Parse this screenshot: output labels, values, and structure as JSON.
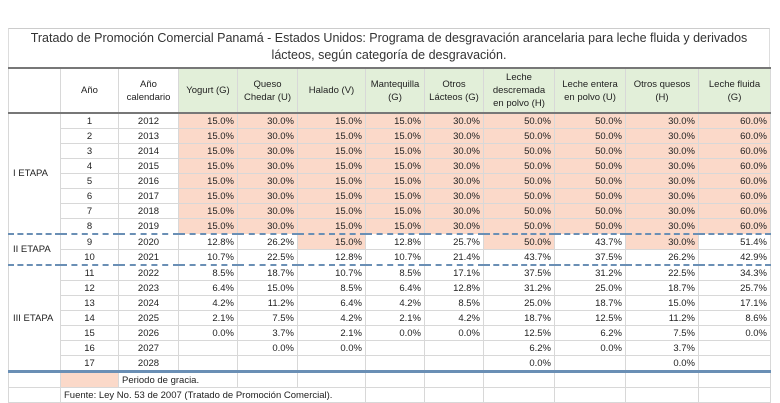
{
  "title": "Tratado de Promoción Comercial Panamá - Estados Unidos: Programa de desgravación arancelaria para leche fluida y derivados lácteos, según categoría de desgravación.",
  "colors": {
    "grace_period": "#fbd9c9",
    "header_green": "#e2efd9",
    "divider_blue": "#6a8fb5"
  },
  "headers": [
    "",
    "Año",
    "Año calendario",
    "Yogurt (G)",
    "Queso Chedar (U)",
    "Halado (V)",
    "Mantequilla (G)",
    "Otros Lácteos (G)",
    "Leche descremada en polvo (H)",
    "Leche entera en polvo (U)",
    "Otros quesos (H)",
    "Leche fluida (G)"
  ],
  "stages": [
    "I ETAPA",
    "II ETAPA",
    "III ETAPA"
  ],
  "rows": [
    {
      "year": "1",
      "cal": "2012",
      "v": [
        "15.0%",
        "30.0%",
        "15.0%",
        "15.0%",
        "30.0%",
        "50.0%",
        "50.0%",
        "30.0%",
        "60.0%"
      ],
      "grace": [
        1,
        1,
        1,
        1,
        1,
        1,
        1,
        1,
        1
      ]
    },
    {
      "year": "2",
      "cal": "2013",
      "v": [
        "15.0%",
        "30.0%",
        "15.0%",
        "15.0%",
        "30.0%",
        "50.0%",
        "50.0%",
        "30.0%",
        "60.0%"
      ],
      "grace": [
        1,
        1,
        1,
        1,
        1,
        1,
        1,
        1,
        1
      ]
    },
    {
      "year": "3",
      "cal": "2014",
      "v": [
        "15.0%",
        "30.0%",
        "15.0%",
        "15.0%",
        "30.0%",
        "50.0%",
        "50.0%",
        "30.0%",
        "60.0%"
      ],
      "grace": [
        1,
        1,
        1,
        1,
        1,
        1,
        1,
        1,
        1
      ]
    },
    {
      "year": "4",
      "cal": "2015",
      "v": [
        "15.0%",
        "30.0%",
        "15.0%",
        "15.0%",
        "30.0%",
        "50.0%",
        "50.0%",
        "30.0%",
        "60.0%"
      ],
      "grace": [
        1,
        1,
        1,
        1,
        1,
        1,
        1,
        1,
        1
      ]
    },
    {
      "year": "5",
      "cal": "2016",
      "v": [
        "15.0%",
        "30.0%",
        "15.0%",
        "15.0%",
        "30.0%",
        "50.0%",
        "50.0%",
        "30.0%",
        "60.0%"
      ],
      "grace": [
        1,
        1,
        1,
        1,
        1,
        1,
        1,
        1,
        1
      ]
    },
    {
      "year": "6",
      "cal": "2017",
      "v": [
        "15.0%",
        "30.0%",
        "15.0%",
        "15.0%",
        "30.0%",
        "50.0%",
        "50.0%",
        "30.0%",
        "60.0%"
      ],
      "grace": [
        1,
        1,
        1,
        1,
        1,
        1,
        1,
        1,
        1
      ]
    },
    {
      "year": "7",
      "cal": "2018",
      "v": [
        "15.0%",
        "30.0%",
        "15.0%",
        "15.0%",
        "30.0%",
        "50.0%",
        "50.0%",
        "30.0%",
        "60.0%"
      ],
      "grace": [
        1,
        1,
        1,
        1,
        1,
        1,
        1,
        1,
        1
      ]
    },
    {
      "year": "8",
      "cal": "2019",
      "v": [
        "15.0%",
        "30.0%",
        "15.0%",
        "15.0%",
        "30.0%",
        "50.0%",
        "50.0%",
        "30.0%",
        "60.0%"
      ],
      "grace": [
        1,
        1,
        1,
        1,
        1,
        1,
        1,
        1,
        1
      ]
    },
    {
      "year": "9",
      "cal": "2020",
      "v": [
        "12.8%",
        "26.2%",
        "15.0%",
        "12.8%",
        "25.7%",
        "50.0%",
        "43.7%",
        "30.0%",
        "51.4%"
      ],
      "grace": [
        0,
        0,
        1,
        0,
        0,
        1,
        0,
        1,
        0
      ]
    },
    {
      "year": "10",
      "cal": "2021",
      "v": [
        "10.7%",
        "22.5%",
        "12.8%",
        "10.7%",
        "21.4%",
        "43.7%",
        "37.5%",
        "26.2%",
        "42.9%"
      ],
      "grace": [
        0,
        0,
        0,
        0,
        0,
        0,
        0,
        0,
        0
      ]
    },
    {
      "year": "11",
      "cal": "2022",
      "v": [
        "8.5%",
        "18.7%",
        "10.7%",
        "8.5%",
        "17.1%",
        "37.5%",
        "31.2%",
        "22.5%",
        "34.3%"
      ],
      "grace": [
        0,
        0,
        0,
        0,
        0,
        0,
        0,
        0,
        0
      ]
    },
    {
      "year": "12",
      "cal": "2023",
      "v": [
        "6.4%",
        "15.0%",
        "8.5%",
        "6.4%",
        "12.8%",
        "31.2%",
        "25.0%",
        "18.7%",
        "25.7%"
      ],
      "grace": [
        0,
        0,
        0,
        0,
        0,
        0,
        0,
        0,
        0
      ]
    },
    {
      "year": "13",
      "cal": "2024",
      "v": [
        "4.2%",
        "11.2%",
        "6.4%",
        "4.2%",
        "8.5%",
        "25.0%",
        "18.7%",
        "15.0%",
        "17.1%"
      ],
      "grace": [
        0,
        0,
        0,
        0,
        0,
        0,
        0,
        0,
        0
      ]
    },
    {
      "year": "14",
      "cal": "2025",
      "v": [
        "2.1%",
        "7.5%",
        "4.2%",
        "2.1%",
        "4.2%",
        "18.7%",
        "12.5%",
        "11.2%",
        "8.6%"
      ],
      "grace": [
        0,
        0,
        0,
        0,
        0,
        0,
        0,
        0,
        0
      ]
    },
    {
      "year": "15",
      "cal": "2026",
      "v": [
        "0.0%",
        "3.7%",
        "2.1%",
        "0.0%",
        "0.0%",
        "12.5%",
        "6.2%",
        "7.5%",
        "0.0%"
      ],
      "grace": [
        0,
        0,
        0,
        0,
        0,
        0,
        0,
        0,
        0
      ]
    },
    {
      "year": "16",
      "cal": "2027",
      "v": [
        "",
        "0.0%",
        "0.0%",
        "",
        "",
        "6.2%",
        "0.0%",
        "3.7%",
        ""
      ],
      "grace": [
        0,
        0,
        0,
        0,
        0,
        0,
        0,
        0,
        0
      ]
    },
    {
      "year": "17",
      "cal": "2028",
      "v": [
        "",
        "",
        "",
        "",
        "",
        "0.0%",
        "",
        "0.0%",
        ""
      ],
      "grace": [
        0,
        0,
        0,
        0,
        0,
        0,
        0,
        0,
        0
      ]
    }
  ],
  "legend": "Periodo de gracia.",
  "source": "Fuente: Ley No. 53 de 2007 (Tratado de Promoción Comercial)."
}
